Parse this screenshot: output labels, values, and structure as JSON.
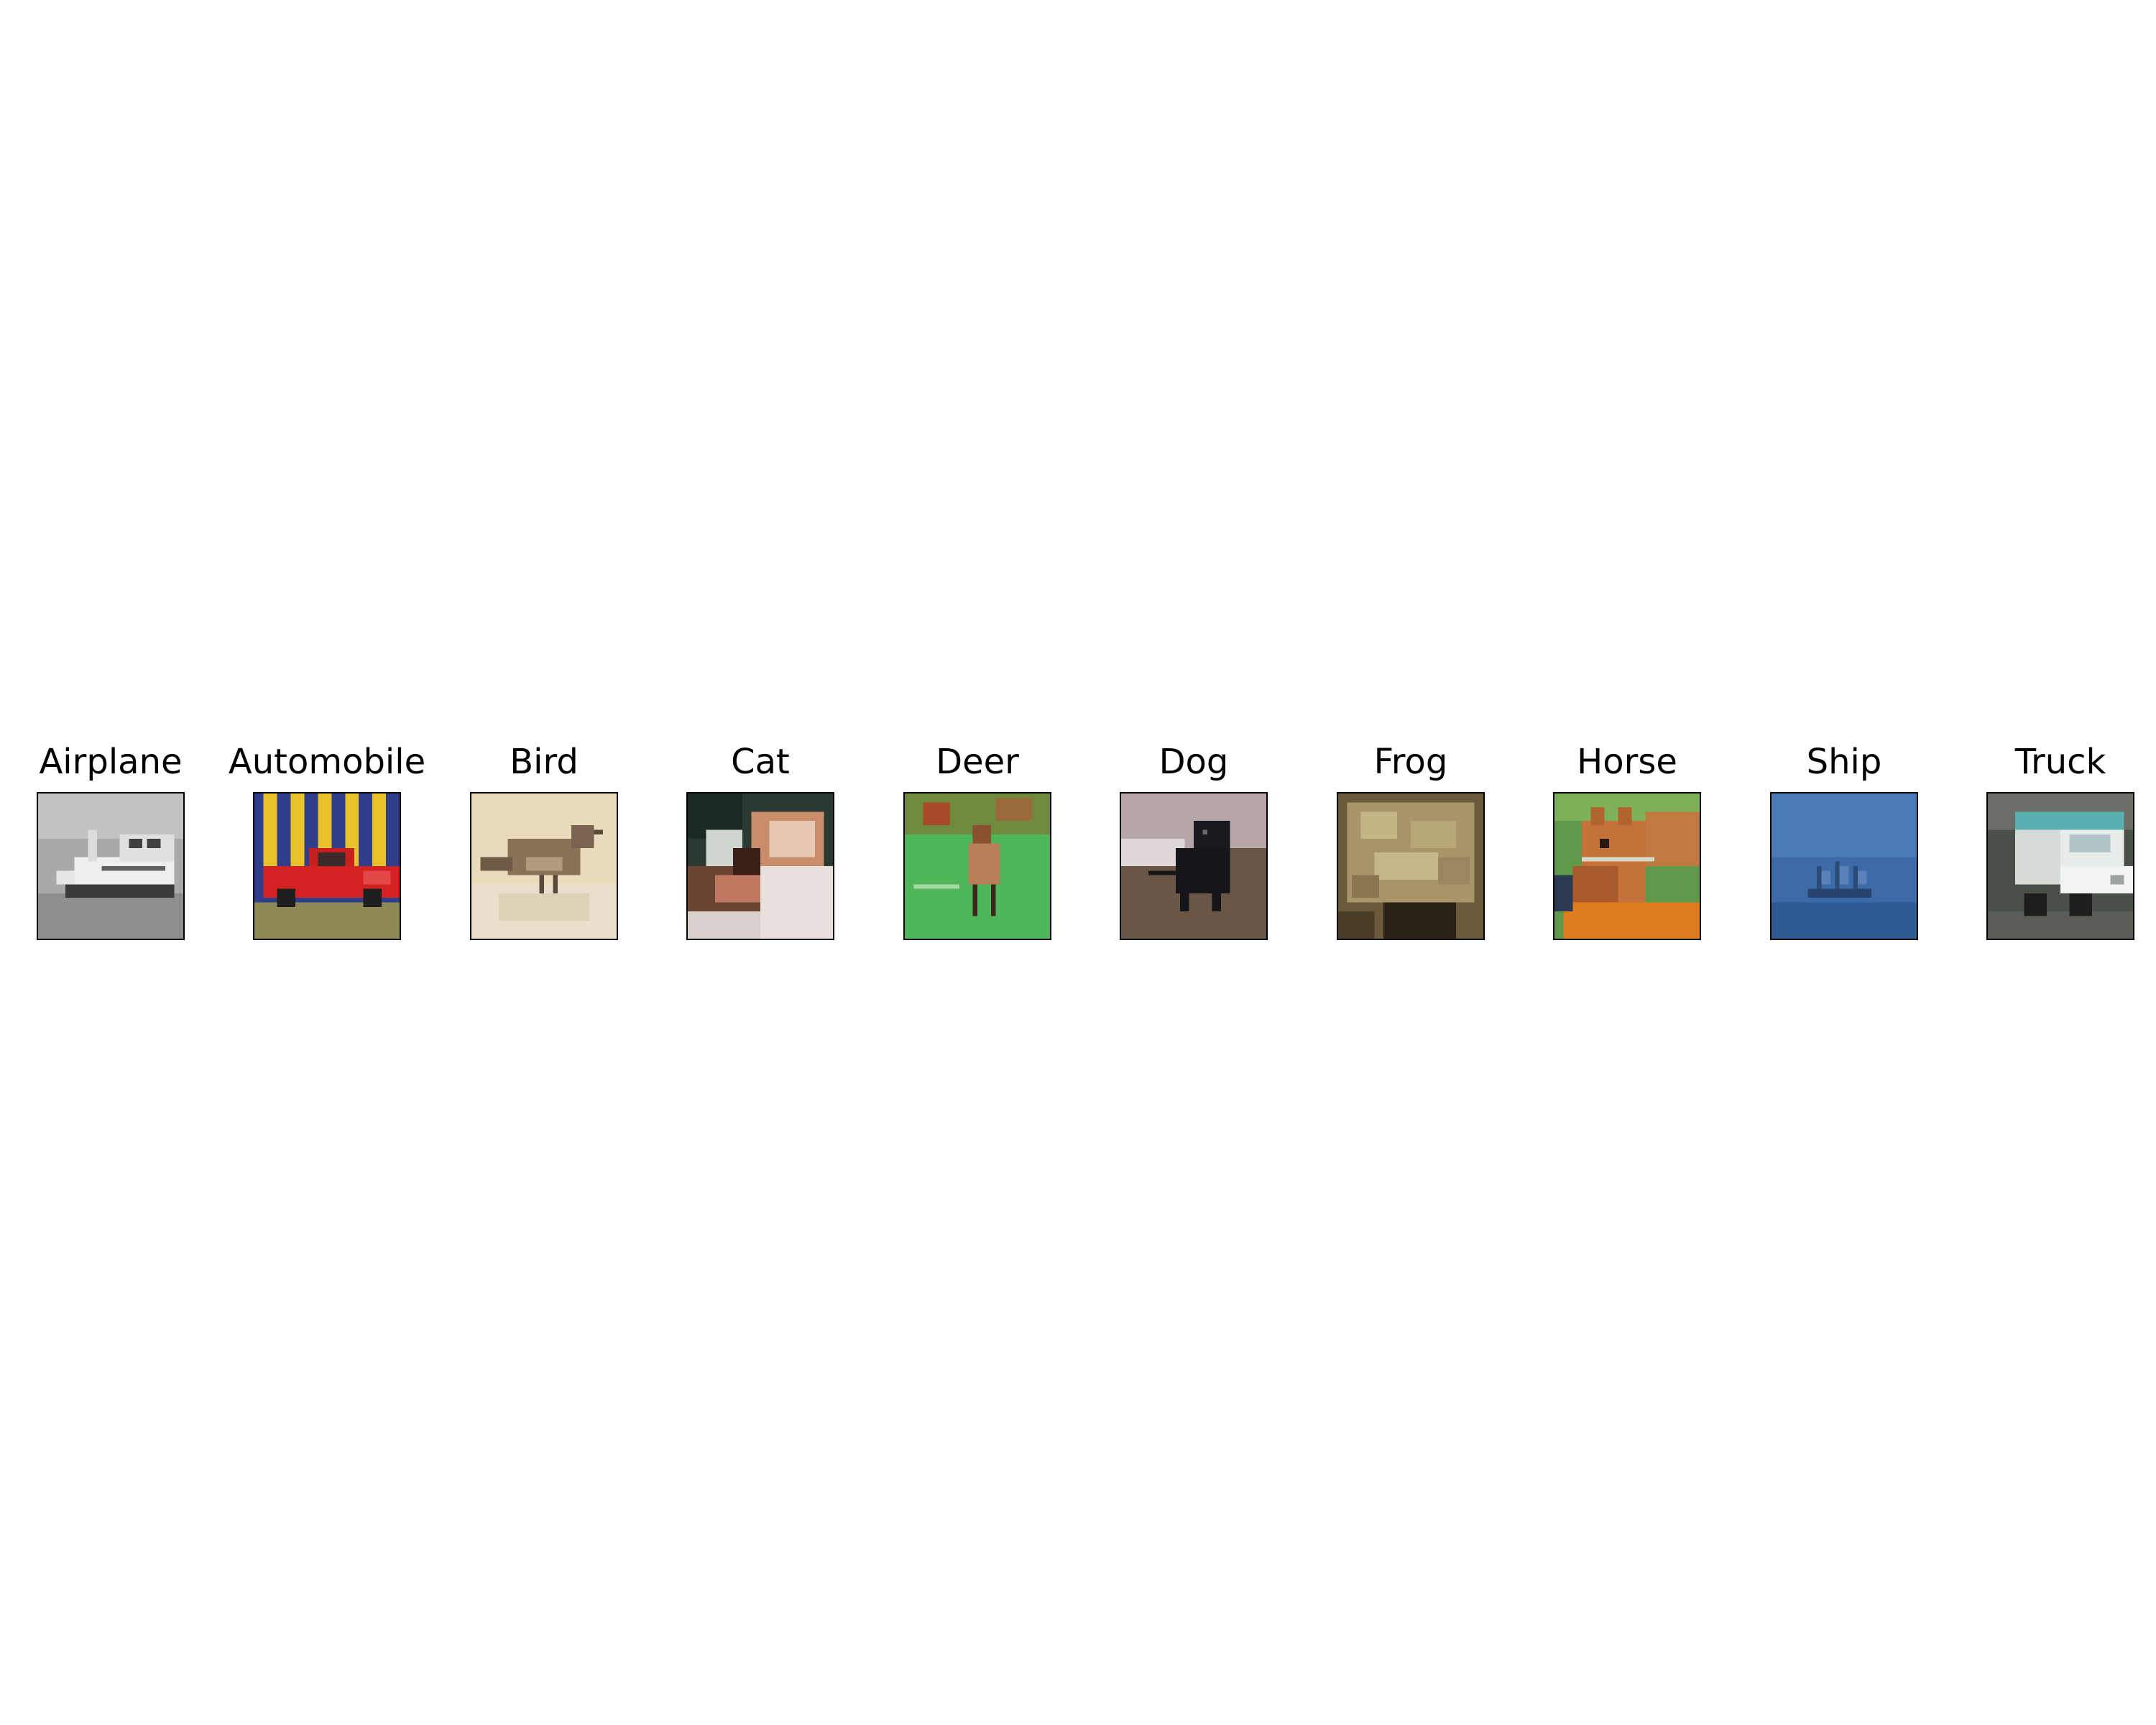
{
  "panels": [
    {
      "label": "Airplane"
    },
    {
      "label": "Automobile"
    },
    {
      "label": "Bird"
    },
    {
      "label": "Cat"
    },
    {
      "label": "Deer"
    },
    {
      "label": "Dog"
    },
    {
      "label": "Frog"
    },
    {
      "label": "Horse"
    },
    {
      "label": "Ship"
    },
    {
      "label": "Truck"
    }
  ]
}
